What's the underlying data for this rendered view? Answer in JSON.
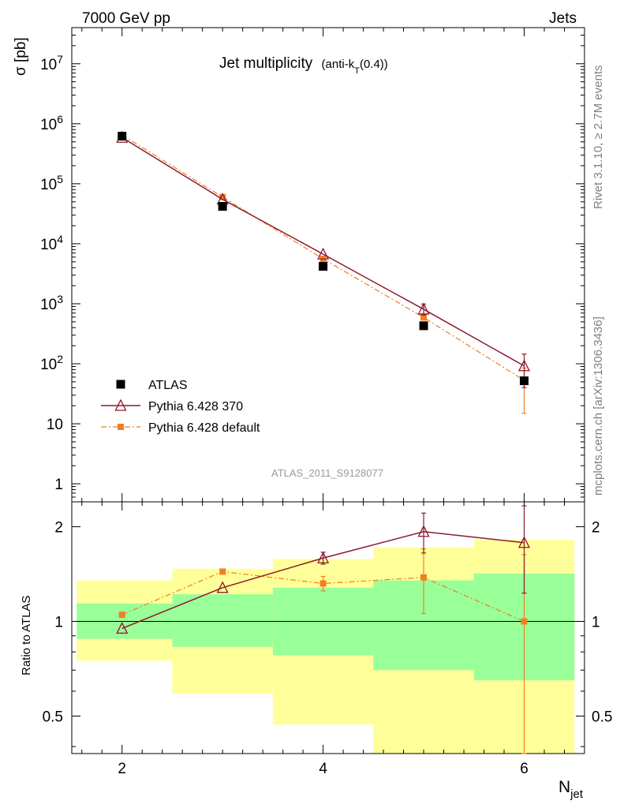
{
  "header": {
    "energy_label": "7000 GeV pp",
    "category_label": "Jets",
    "title_main": "Jet multiplicity",
    "title_sub_pre": "(anti-k",
    "title_sub_idx": "T",
    "title_sub_post": "(0.4))",
    "analysis_id": "ATLAS_2011_S9128077",
    "side_rivet": "Rivet 3.1.10, ≥ 2.7M events",
    "side_mcplots": "mcplots.cern.ch [arXiv:1306.3436]"
  },
  "chart_data": {
    "type": "scatter",
    "xlabel_main": "N",
    "xlabel_sub": "jet",
    "ylabel_main": "σ [pb]",
    "ylabel_ratio": "Ratio to ATLAS",
    "xlim": [
      1.5,
      6.6
    ],
    "ylim_main": [
      0.5,
      40000000
    ],
    "ylim_ratio": [
      0.38,
      2.4
    ],
    "x_ticks": [
      2,
      4,
      6
    ],
    "x_tick_labels": [
      "2",
      "4",
      "6"
    ],
    "y_ticks_main": [
      1,
      10,
      100,
      1000,
      10000,
      100000,
      1000000,
      10000000
    ],
    "y_tick_labels_main": [
      "1",
      "10",
      "10^2",
      "10^3",
      "10^4",
      "10^5",
      "10^6",
      "10^7"
    ],
    "y_ticks_ratio": [
      0.5,
      1,
      2
    ],
    "y_tick_labels_ratio": [
      "0.5",
      "1",
      "2"
    ],
    "x": [
      2,
      3,
      4,
      5,
      6
    ],
    "series": [
      {
        "name": "ATLAS",
        "style": "data",
        "color": "#000000",
        "values": [
          620000,
          42000,
          4200,
          430,
          52
        ],
        "ratio_band_inner": [
          [
            0.88,
            1.14
          ],
          [
            0.83,
            1.22
          ],
          [
            0.78,
            1.28
          ],
          [
            0.7,
            1.35
          ],
          [
            0.65,
            1.42
          ]
        ],
        "ratio_band_outer": [
          [
            0.75,
            1.35
          ],
          [
            0.59,
            1.47
          ],
          [
            0.47,
            1.58
          ],
          [
            0.38,
            1.72
          ],
          [
            0.38,
            1.82
          ]
        ]
      },
      {
        "name": "Pythia 6.428 370",
        "style": "line-triangle",
        "color": "#8b1a2b",
        "values": [
          590000,
          55000,
          6700,
          810,
          92
        ],
        "ratio": [
          0.95,
          1.28,
          1.59,
          1.93,
          1.78
        ],
        "ratio_err": [
          0,
          0,
          0.07,
          0.28,
          0.55
        ]
      },
      {
        "name": "Pythia 6.428 default",
        "style": "dashdot-square",
        "color": "#f07f23",
        "values": [
          650000,
          60000,
          5600,
          590,
          53
        ],
        "ratio": [
          1.05,
          1.44,
          1.32,
          1.38,
          1.0
        ],
        "ratio_err": [
          0,
          0,
          0.07,
          0.32,
          0.63
        ]
      }
    ]
  },
  "colors": {
    "band_inner": "#99ff99",
    "band_outer": "#ffff99"
  }
}
